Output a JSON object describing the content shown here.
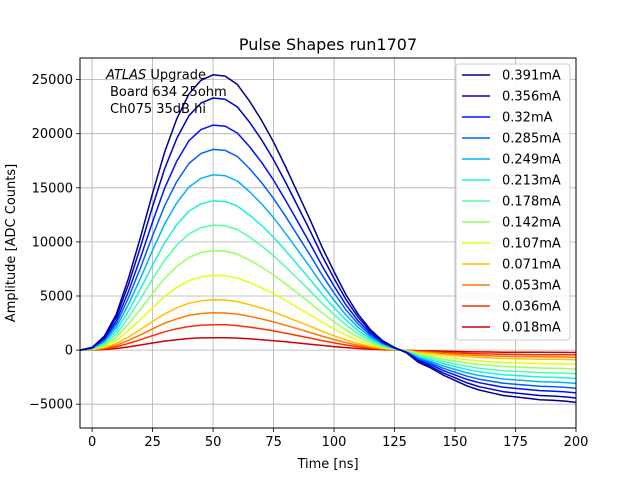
{
  "chart_data": {
    "type": "line",
    "title": "Pulse Shapes run1707",
    "xlabel": "Time [ns]",
    "ylabel": "Amplitude [ADC Counts]",
    "xlim": [
      -5,
      200
    ],
    "ylim": [
      -7200,
      27000
    ],
    "x_ticks": [
      0,
      25,
      50,
      75,
      100,
      125,
      150,
      175,
      200
    ],
    "y_ticks": [
      -5000,
      0,
      5000,
      10000,
      15000,
      20000,
      25000
    ],
    "grid": true,
    "legend_position": "upper right",
    "annotation": {
      "lines": [
        {
          "italic": "ATLAS",
          "rest": " Upgrade"
        },
        {
          "italic": "",
          "rest": "Board 634 25ohm"
        },
        {
          "italic": "",
          "rest": "Ch075 35dB hi"
        }
      ]
    },
    "pulse_shape": {
      "times": [
        -5,
        0,
        5,
        10,
        15,
        20,
        25,
        30,
        35,
        40,
        45,
        50,
        55,
        60,
        65,
        70,
        75,
        80,
        85,
        90,
        95,
        100,
        105,
        110,
        115,
        120,
        125,
        130,
        135,
        140,
        145,
        150,
        155,
        160,
        165,
        170,
        175,
        180,
        185,
        190,
        195,
        200
      ],
      "normalized": [
        0,
        0.01,
        0.05,
        0.13,
        0.26,
        0.41,
        0.57,
        0.72,
        0.84,
        0.93,
        0.98,
        1.0,
        0.995,
        0.965,
        0.905,
        0.835,
        0.755,
        0.665,
        0.57,
        0.475,
        0.375,
        0.285,
        0.2,
        0.13,
        0.075,
        0.035,
        0.01,
        -0.01,
        -0.045,
        -0.065,
        -0.09,
        -0.11,
        -0.13,
        -0.145,
        -0.155,
        -0.165,
        -0.17,
        -0.175,
        -0.18,
        -0.182,
        -0.185,
        -0.19
      ]
    },
    "series": [
      {
        "name": "0.391mA",
        "color": "#00008f",
        "peak": 25450
      },
      {
        "name": "0.356mA",
        "color": "#0000c8",
        "peak": 23300
      },
      {
        "name": "0.32mA",
        "color": "#0010ff",
        "peak": 20800
      },
      {
        "name": "0.285mA",
        "color": "#0060ff",
        "peak": 18550
      },
      {
        "name": "0.249mA",
        "color": "#00b0ff",
        "peak": 16200
      },
      {
        "name": "0.213mA",
        "color": "#18f0e0",
        "peak": 13800
      },
      {
        "name": "0.178mA",
        "color": "#50ffa8",
        "peak": 11550
      },
      {
        "name": "0.142mA",
        "color": "#98ff60",
        "peak": 9200
      },
      {
        "name": "0.107mA",
        "color": "#e0ff18",
        "peak": 6900
      },
      {
        "name": "0.071mA",
        "color": "#ffc000",
        "peak": 4650
      },
      {
        "name": "0.053mA",
        "color": "#ff7800",
        "peak": 3450
      },
      {
        "name": "0.036mA",
        "color": "#ff3000",
        "peak": 2350
      },
      {
        "name": "0.018mA",
        "color": "#d00000",
        "peak": 1150
      }
    ]
  }
}
